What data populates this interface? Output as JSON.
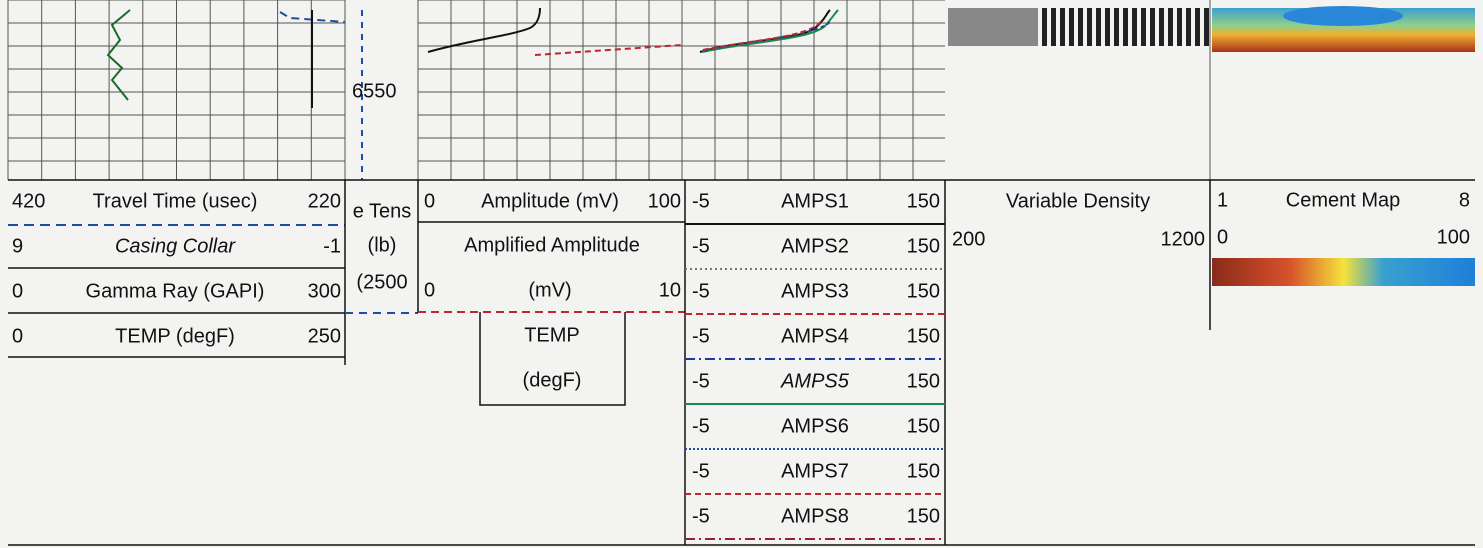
{
  "depth_label": "6550",
  "travel_time_panel": {
    "rows": [
      {
        "left": "420",
        "name": "Travel Time (usec)",
        "right": "220"
      },
      {
        "left": "9",
        "name": "Casing Collar",
        "right": "-1"
      },
      {
        "left": "0",
        "name": "Gamma Ray (GAPI)",
        "right": "300"
      },
      {
        "left": "0",
        "name": "TEMP (degF)",
        "right": "250"
      }
    ]
  },
  "tension_panel": [
    "e Tens",
    "(lb)",
    "(2500"
  ],
  "amplitude_panel": {
    "left": "0",
    "name": "Amplitude (mV)",
    "right": "100",
    "amplified_name": "Amplified Amplitude",
    "amplified_left": "0",
    "amplified_unit": "(mV)",
    "amplified_right": "10",
    "temp_box": [
      "TEMP",
      "(degF)"
    ]
  },
  "amps_panel": {
    "rows": [
      {
        "left": "-5",
        "name": "AMPS1",
        "right": "150"
      },
      {
        "left": "-5",
        "name": "AMPS2",
        "right": "150"
      },
      {
        "left": "-5",
        "name": "AMPS3",
        "right": "150"
      },
      {
        "left": "-5",
        "name": "AMPS4",
        "right": "150"
      },
      {
        "left": "-5",
        "name": "AMPS5",
        "right": "150"
      },
      {
        "left": "-5",
        "name": "AMPS6",
        "right": "150"
      },
      {
        "left": "-5",
        "name": "AMPS7",
        "right": "150"
      },
      {
        "left": "-5",
        "name": "AMPS8",
        "right": "150"
      }
    ]
  },
  "vdl_panel": {
    "title": "Variable Density",
    "left": "200",
    "right": "1200"
  },
  "cement_map_panel": {
    "title": "Cement Map",
    "left": "1",
    "right": "8",
    "scale_left": "0",
    "scale_right": "100"
  }
}
